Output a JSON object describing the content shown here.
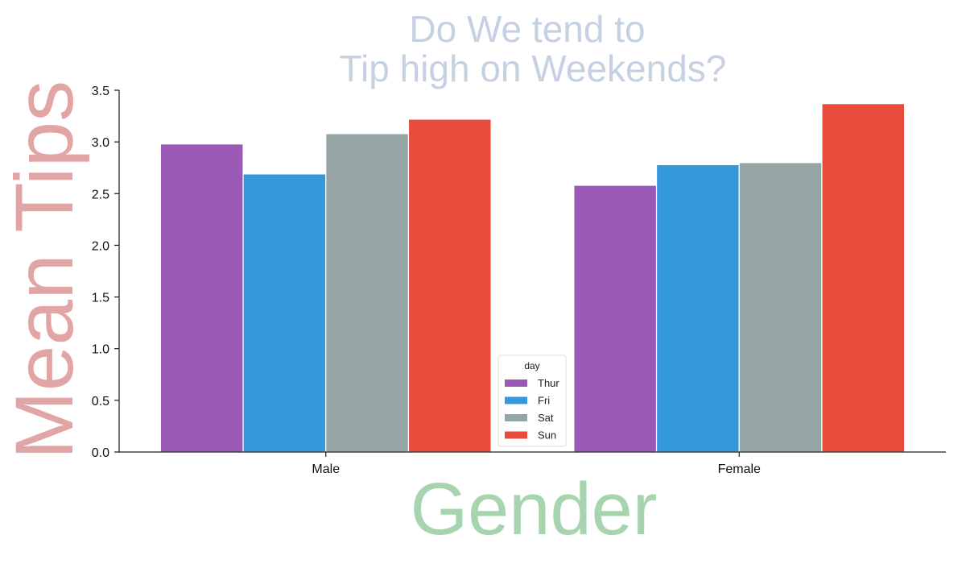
{
  "chart_data": {
    "type": "bar",
    "title": "Do We tend to\nTip high on Weekends?",
    "xlabel": "Gender",
    "ylabel": "Mean Tips",
    "categories": [
      "Male",
      "Female"
    ],
    "series": [
      {
        "name": "Thur",
        "color": "#9b59b6",
        "values": [
          2.98,
          2.58
        ]
      },
      {
        "name": "Fri",
        "color": "#3498db",
        "values": [
          2.69,
          2.78
        ]
      },
      {
        "name": "Sat",
        "color": "#95a5a6",
        "values": [
          3.08,
          2.8
        ]
      },
      {
        "name": "Sun",
        "color": "#e74c3c",
        "values": [
          3.22,
          3.37
        ]
      }
    ],
    "ylim": [
      0,
      3.5
    ],
    "yticks": [
      "0.0",
      "0.5",
      "1.0",
      "1.5",
      "2.0",
      "2.5",
      "3.0",
      "3.5"
    ],
    "legend": {
      "title": "day",
      "placement": "lower-center"
    },
    "grid": false,
    "colors": {
      "title": "#c5d1e3",
      "xlabel": "#a5d4ae",
      "ylabel": "#e1a5a5",
      "axis": "#222222"
    }
  }
}
